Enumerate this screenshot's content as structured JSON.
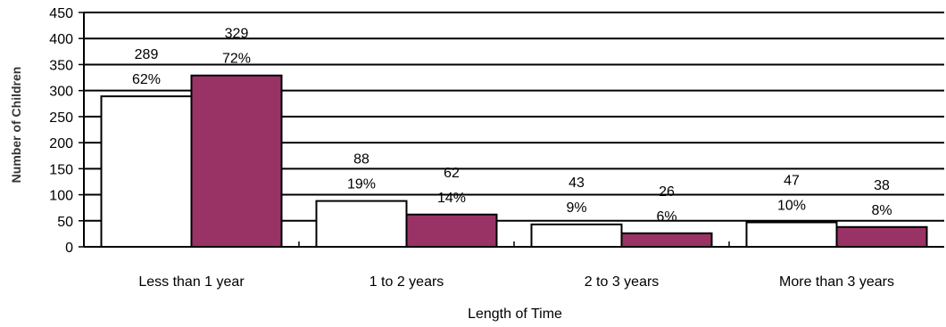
{
  "chart_data": {
    "type": "bar",
    "title": "",
    "xlabel": "Length of Time",
    "ylabel": "Number of Children",
    "ylim": [
      0,
      450
    ],
    "yticks": [
      0,
      50,
      100,
      150,
      200,
      250,
      300,
      350,
      400,
      450
    ],
    "grid": true,
    "legend": "none",
    "categories": [
      "Less than 1 year",
      "1 to 2 years",
      "2 to 3 years",
      "More than 3 years"
    ],
    "series": [
      {
        "values": [
          289,
          88,
          43,
          47
        ],
        "percent_labels": [
          "62%",
          "19%",
          "9%",
          "10%"
        ],
        "color": "#ffffff"
      },
      {
        "values": [
          329,
          62,
          26,
          38
        ],
        "percent_labels": [
          "72%",
          "14%",
          "6%",
          "8%"
        ],
        "color": "#993366"
      }
    ]
  }
}
